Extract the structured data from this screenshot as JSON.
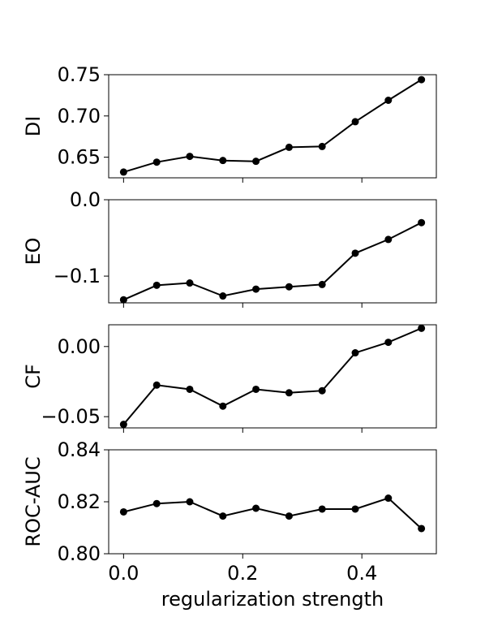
{
  "chart_data": [
    {
      "type": "line",
      "ylabel": "DI",
      "xlabel": "",
      "x": [
        0.0,
        0.0556,
        0.1111,
        0.1667,
        0.2222,
        0.2778,
        0.3333,
        0.3889,
        0.4444,
        0.5
      ],
      "values": [
        0.632,
        0.644,
        0.651,
        0.646,
        0.645,
        0.662,
        0.663,
        0.693,
        0.719,
        0.744
      ],
      "ylim": [
        0.625,
        0.75
      ],
      "yticks": [
        0.65,
        0.7,
        0.75
      ],
      "ytick_labels": [
        "0.65",
        "0.70",
        "0.75"
      ],
      "show_x_tick_labels": false
    },
    {
      "type": "line",
      "ylabel": "EO",
      "xlabel": "",
      "x": [
        0.0,
        0.0556,
        0.1111,
        0.1667,
        0.2222,
        0.2778,
        0.3333,
        0.3889,
        0.4444,
        0.5
      ],
      "values": [
        -0.131,
        -0.112,
        -0.109,
        -0.126,
        -0.117,
        -0.114,
        -0.111,
        -0.07,
        -0.052,
        -0.03
      ],
      "ylim": [
        -0.135,
        0.0
      ],
      "yticks": [
        -0.1,
        0.0
      ],
      "ytick_labels": [
        "−0.1",
        "0.0"
      ],
      "show_x_tick_labels": false
    },
    {
      "type": "line",
      "ylabel": "CF",
      "xlabel": "",
      "x": [
        0.0,
        0.0556,
        0.1111,
        0.1667,
        0.2222,
        0.2778,
        0.3333,
        0.3889,
        0.4444,
        0.5
      ],
      "values": [
        -0.0555,
        -0.0275,
        -0.0305,
        -0.0425,
        -0.0305,
        -0.033,
        -0.0315,
        -0.0045,
        0.003,
        0.013
      ],
      "ylim": [
        -0.058,
        0.0155
      ],
      "yticks": [
        -0.05,
        0.0
      ],
      "ytick_labels": [
        "−0.05",
        "0.00"
      ],
      "show_x_tick_labels": false
    },
    {
      "type": "line",
      "ylabel": "ROC-AUC",
      "xlabel": "regularization strength",
      "x": [
        0.0,
        0.0556,
        0.1111,
        0.1667,
        0.2222,
        0.2778,
        0.3333,
        0.3889,
        0.4444,
        0.5
      ],
      "values": [
        0.8161,
        0.8193,
        0.82,
        0.8145,
        0.8175,
        0.8145,
        0.8172,
        0.8172,
        0.8214,
        0.8097
      ],
      "ylim": [
        0.8,
        0.84
      ],
      "yticks": [
        0.8,
        0.82,
        0.84
      ],
      "ytick_labels": [
        "0.80",
        "0.82",
        "0.84"
      ],
      "show_x_tick_labels": true
    }
  ],
  "shared_x": {
    "xlim": [
      -0.025,
      0.525
    ],
    "xticks": [
      0.0,
      0.2,
      0.4
    ],
    "xtick_labels": [
      "0.0",
      "0.2",
      "0.4"
    ]
  },
  "style": {
    "line_color": "#000000",
    "marker_color": "#000000",
    "marker": "circle"
  }
}
